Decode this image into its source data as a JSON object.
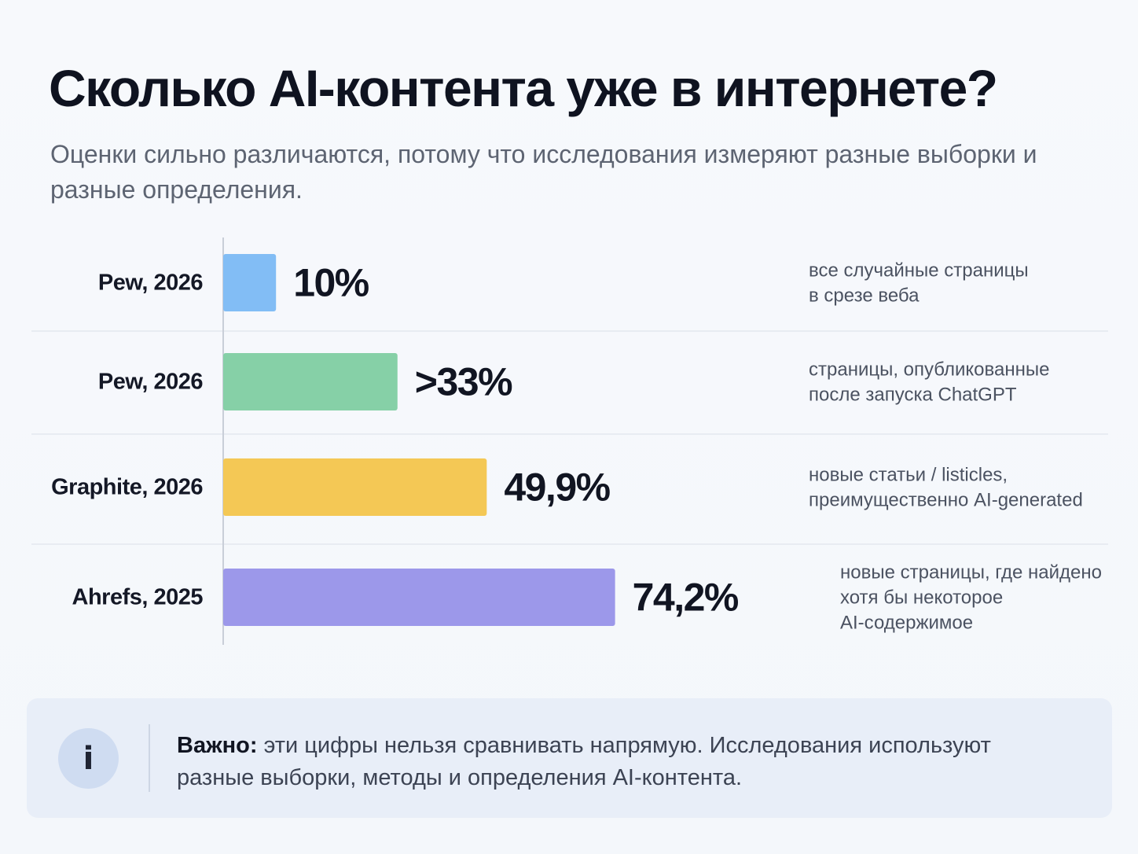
{
  "title": "Сколько AI-контента уже в интернете?",
  "subtitle": "Оценки сильно различаются, потому что исследования измеряют разные выборки и разные определения.",
  "chart_data": {
    "type": "bar",
    "orientation": "horizontal",
    "categories": [
      "Pew, 2026",
      "Pew, 2026",
      "Graphite, 2026",
      "Ahrefs, 2025"
    ],
    "values": [
      10,
      33,
      49.9,
      74.2
    ],
    "value_labels": [
      "10%",
      ">33%",
      "49,9%",
      "74,2%"
    ],
    "notes": [
      [
        "все случайные страницы",
        "в срезе веба"
      ],
      [
        "страницы, опубликованные",
        "после запуска ChatGPT"
      ],
      [
        "новые статьи / listicles,",
        "преимущественно AI-generated"
      ],
      [
        "новые страницы, где найдено",
        "хотя бы некоторое",
        "AI-содержимое"
      ]
    ],
    "colors": [
      "#82bdf5",
      "#86d0a7",
      "#f4c855",
      "#9c98ea"
    ],
    "xlim": [
      0,
      100
    ],
    "grid": false,
    "legend": "none"
  },
  "callout": {
    "icon": "info-icon",
    "icon_glyph": "i",
    "bold": "Важно:",
    "text": " эти цифры нельзя сравнивать напрямую. Исследования используют разные выборки, методы и определения AI-контента."
  }
}
